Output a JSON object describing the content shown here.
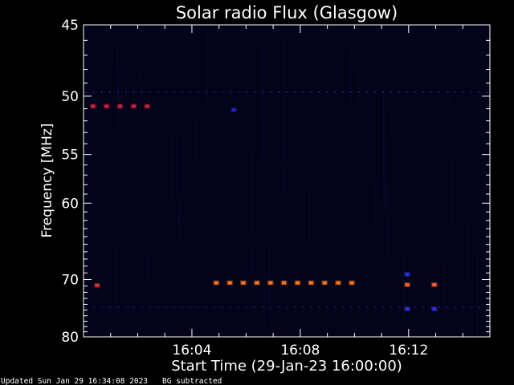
{
  "chart_data": {
    "type": "heatmap",
    "title": "Solar radio Flux (Glasgow)",
    "xlabel": "Start Time (29-Jan-23 16:00:00)",
    "ylabel": "Frequency [MHz]",
    "x_unit": "minutes after 16:00",
    "xlim": [
      0,
      15
    ],
    "ylim": [
      80,
      45
    ],
    "y_scale": "reciprocal",
    "x_ticks": [
      {
        "value": 4,
        "label": "16:04"
      },
      {
        "value": 8,
        "label": "16:08"
      },
      {
        "value": 12,
        "label": "16:12"
      }
    ],
    "y_ticks": [
      {
        "value": 45,
        "label": "45"
      },
      {
        "value": 50,
        "label": "50"
      },
      {
        "value": 55,
        "label": "55"
      },
      {
        "value": 60,
        "label": "60"
      },
      {
        "value": 70,
        "label": "70"
      },
      {
        "value": 80,
        "label": "80"
      }
    ],
    "background_lines": [
      {
        "freq": 49.7,
        "color": "#1a1aa8",
        "intensity": "low"
      },
      {
        "freq": 74.5,
        "color": "#1010a0",
        "intensity": "low"
      }
    ],
    "spots": [
      {
        "time": 0.35,
        "freq": 50.8,
        "color": "#d02040"
      },
      {
        "time": 0.85,
        "freq": 50.8,
        "color": "#d02040"
      },
      {
        "time": 1.35,
        "freq": 50.8,
        "color": "#d02040"
      },
      {
        "time": 1.85,
        "freq": 50.8,
        "color": "#d02040"
      },
      {
        "time": 2.35,
        "freq": 50.8,
        "color": "#d02040"
      },
      {
        "time": 5.55,
        "freq": 51.1,
        "color": "#2020c0"
      },
      {
        "time": 0.5,
        "freq": 70.9,
        "color": "#e03030"
      },
      {
        "time": 4.9,
        "freq": 70.5,
        "color": "#ff7820"
      },
      {
        "time": 5.4,
        "freq": 70.5,
        "color": "#ff7820"
      },
      {
        "time": 5.9,
        "freq": 70.5,
        "color": "#ff7820"
      },
      {
        "time": 6.4,
        "freq": 70.5,
        "color": "#ff7820"
      },
      {
        "time": 6.9,
        "freq": 70.5,
        "color": "#ff7820"
      },
      {
        "time": 7.4,
        "freq": 70.5,
        "color": "#ff7820"
      },
      {
        "time": 7.9,
        "freq": 70.5,
        "color": "#ff7820"
      },
      {
        "time": 8.4,
        "freq": 70.5,
        "color": "#ff7820"
      },
      {
        "time": 8.9,
        "freq": 70.5,
        "color": "#ff7820"
      },
      {
        "time": 9.4,
        "freq": 70.5,
        "color": "#ff7820"
      },
      {
        "time": 9.9,
        "freq": 70.5,
        "color": "#ff7820"
      },
      {
        "time": 11.95,
        "freq": 69.2,
        "color": "#3030e0"
      },
      {
        "time": 11.95,
        "freq": 70.8,
        "color": "#ff6020"
      },
      {
        "time": 12.95,
        "freq": 70.8,
        "color": "#ff6020"
      },
      {
        "time": 11.95,
        "freq": 74.8,
        "color": "#3030e0"
      },
      {
        "time": 12.95,
        "freq": 74.8,
        "color": "#3030e0"
      }
    ],
    "colors": {
      "background": "#000000",
      "plot_background": "#03031a",
      "axes": "#ffffff"
    }
  },
  "footer": {
    "updated": "Updated Sun Jan 29 16:34:08 2023",
    "note": "BG subtracted"
  }
}
